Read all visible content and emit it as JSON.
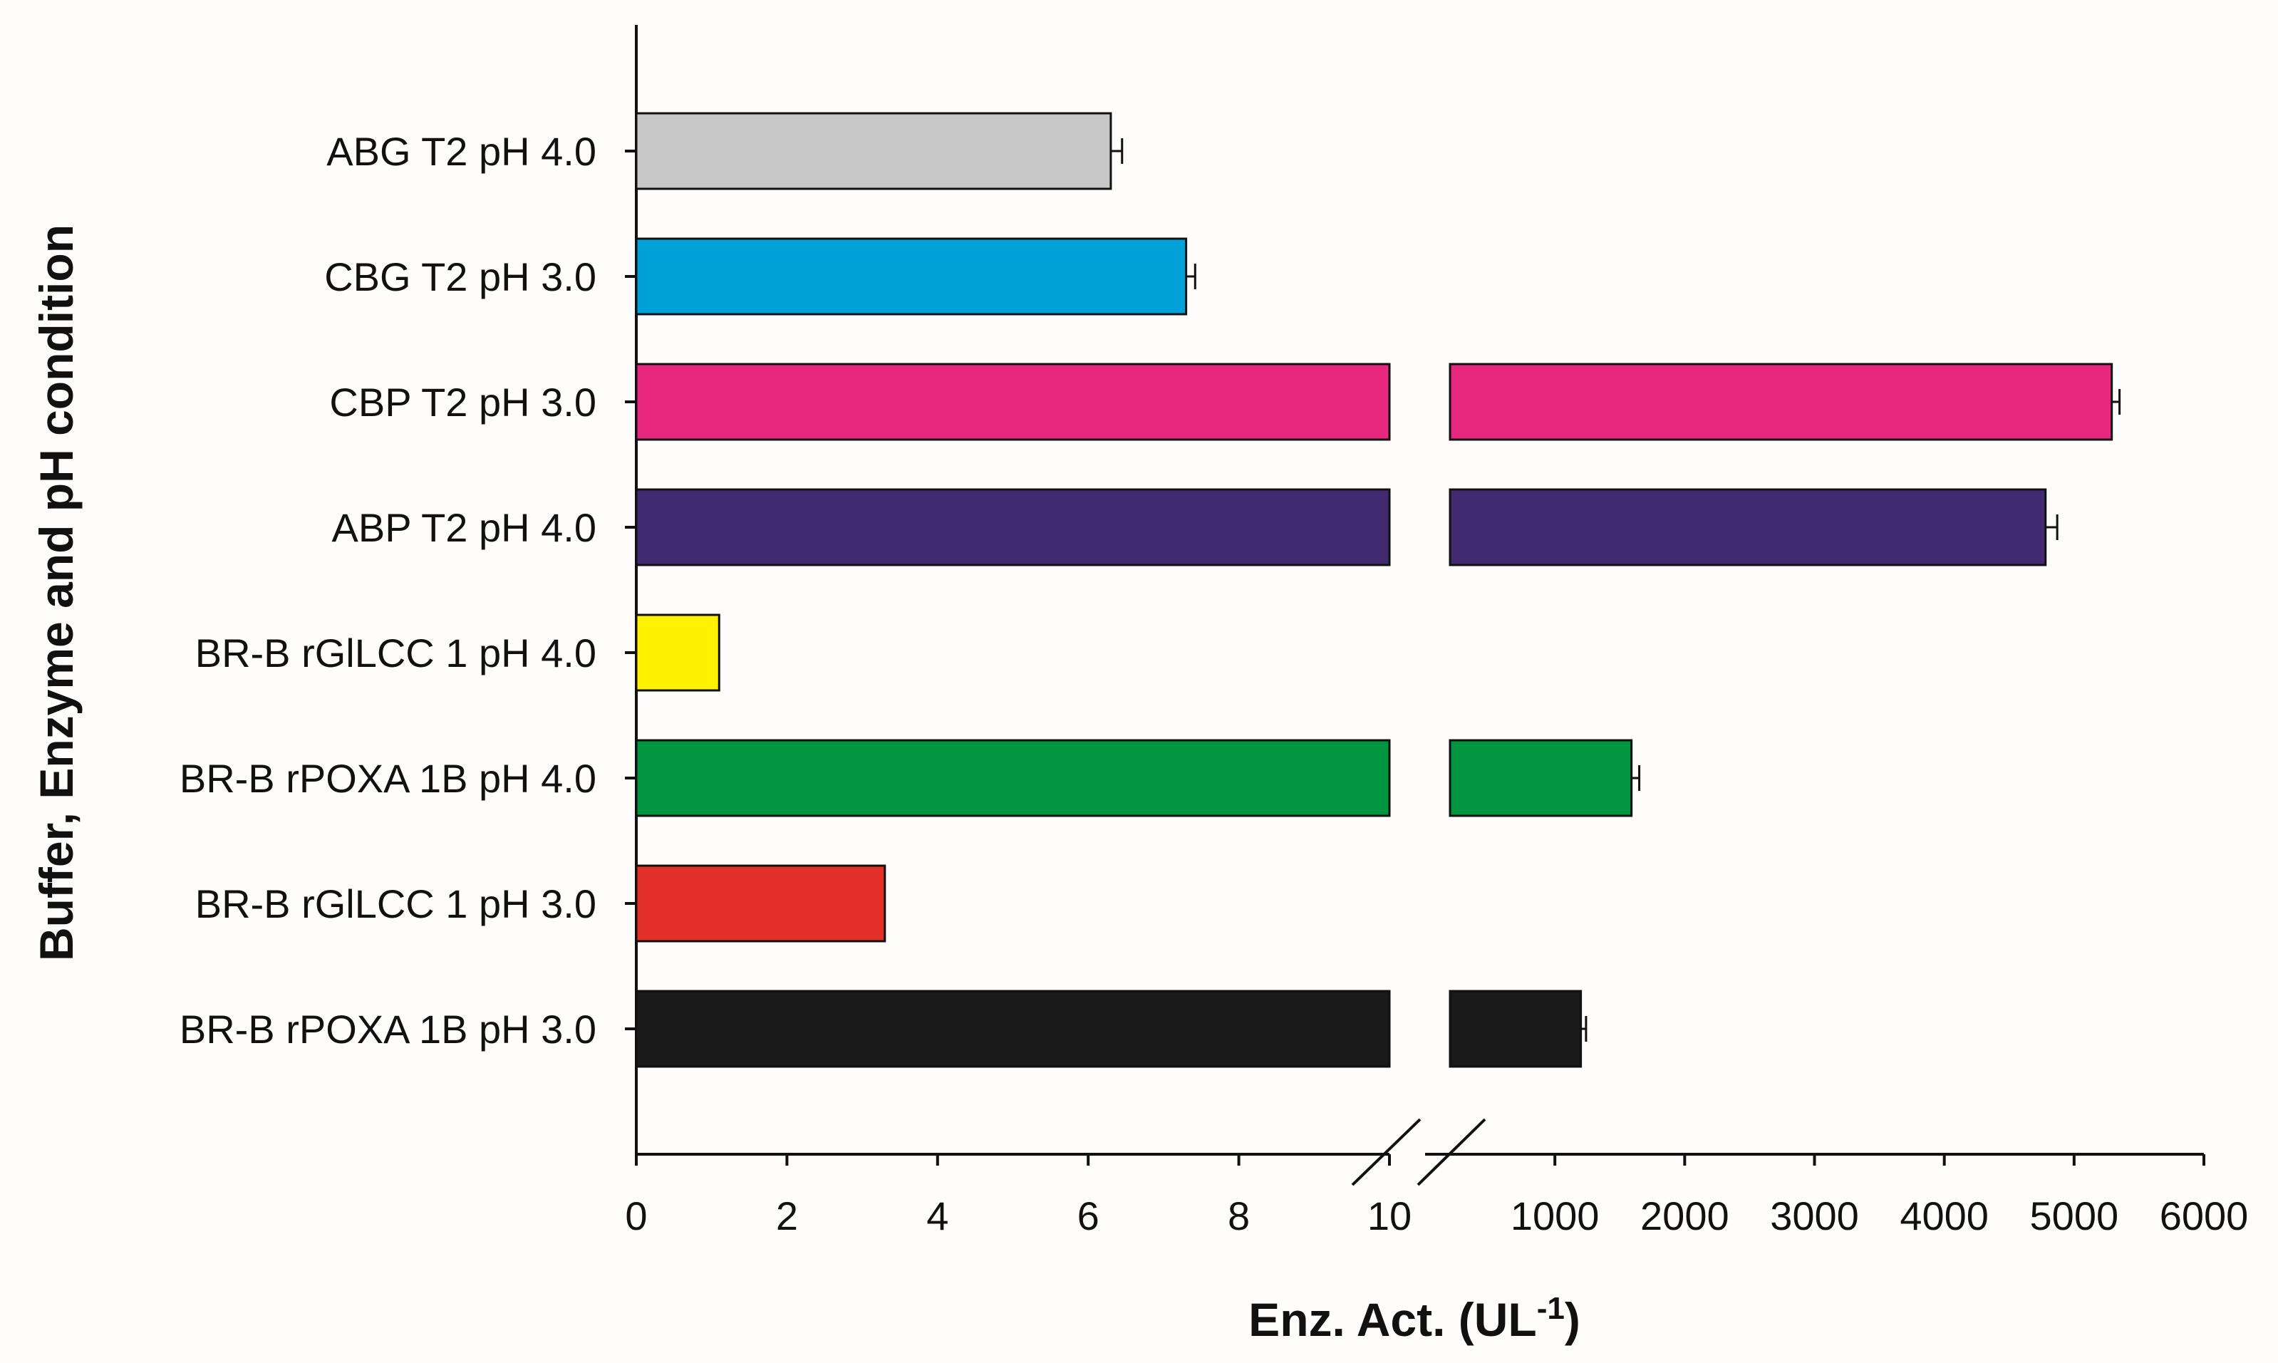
{
  "chart_data": {
    "type": "bar",
    "orientation": "horizontal",
    "xlabel": "Enz. Act. (UL",
    "xlabel_superscript": "-1",
    "xlabel_suffix": ")",
    "ylabel": "Buffer, Enzyme and pH condition",
    "axis_break": true,
    "segment_low": {
      "range": [
        0,
        10
      ],
      "ticks": [
        "0",
        "2",
        "4",
        "6",
        "8",
        "10"
      ]
    },
    "segment_high": {
      "range": [
        0,
        6000
      ],
      "ticks": [
        "1000",
        "2000",
        "3000",
        "4000",
        "5000",
        "6000"
      ]
    },
    "bars": [
      {
        "label": "ABG T2 pH 4.0",
        "value": 6.3,
        "error": 0.15,
        "color": "#c8c8c8"
      },
      {
        "label": "CBG T2 pH 3.0",
        "value": 7.3,
        "error": 0.12,
        "color": "#00a0d8"
      },
      {
        "label": "CBP T2 pH 3.0",
        "value": 5290,
        "error": 60,
        "color": "#e8287e"
      },
      {
        "label": "ABP T2 pH 4.0",
        "value": 4780,
        "error": 90,
        "color": "#412a70"
      },
      {
        "label": "BR-B rGlLCC 1 pH 4.0",
        "value": 1.1,
        "error": 0,
        "color": "#fff200"
      },
      {
        "label": "BR-B rPOXA 1B pH 4.0",
        "value": 1590,
        "error": 60,
        "color": "#009640"
      },
      {
        "label": "BR-B rGlLCC 1 pH 3.0",
        "value": 3.3,
        "error": 0,
        "color": "#e3312a"
      },
      {
        "label": "BR-B rPOXA 1B pH 3.0",
        "value": 1200,
        "error": 40,
        "color": "#1a1a1a"
      }
    ]
  }
}
